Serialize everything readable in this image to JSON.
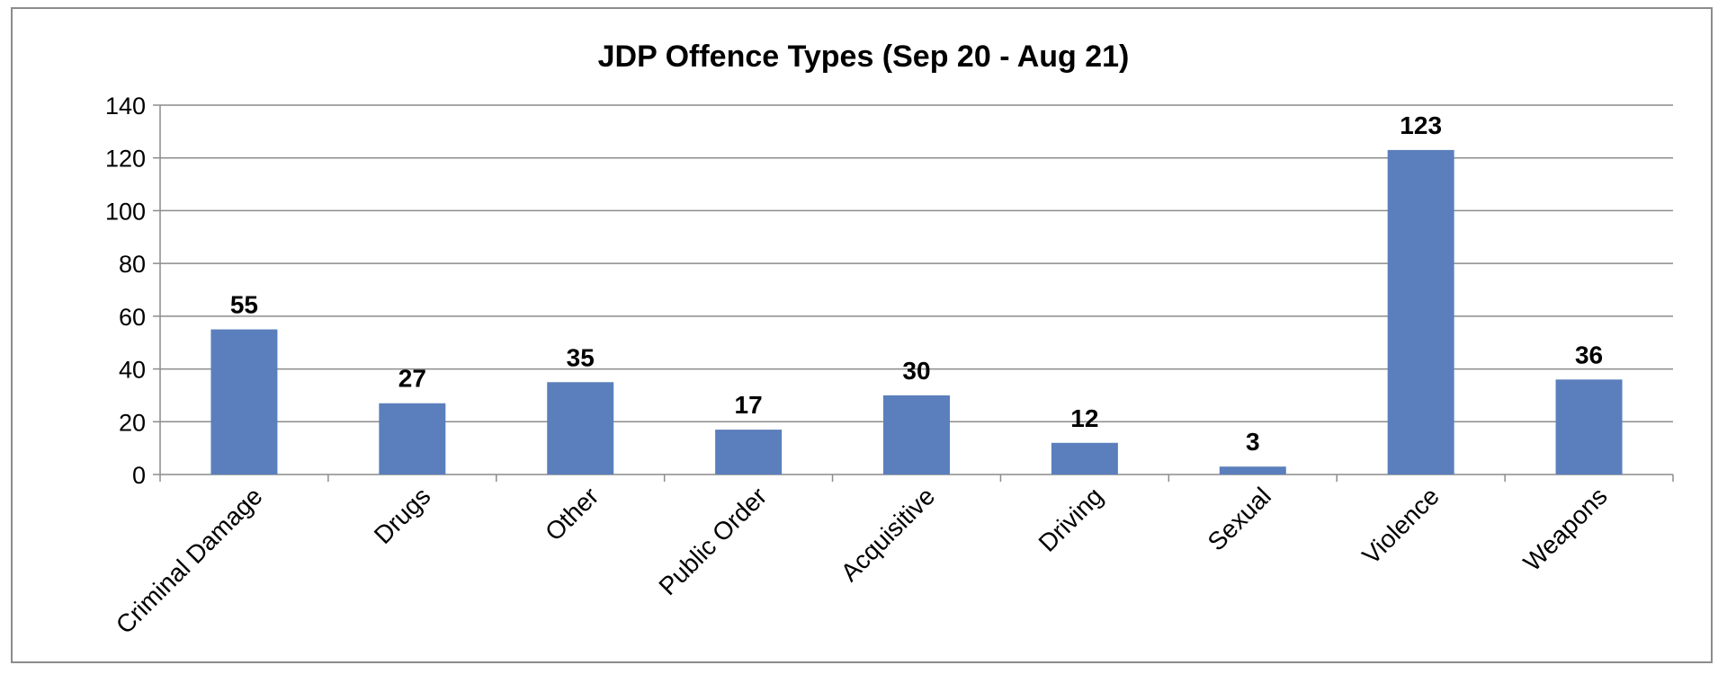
{
  "chart_data": {
    "type": "bar",
    "title": "JDP Offence Types (Sep 20 - Aug 21)",
    "xlabel": "",
    "ylabel": "",
    "categories": [
      "Criminal Damage",
      "Drugs",
      "Other",
      "Public Order",
      "Acquisitive",
      "Driving",
      "Sexual",
      "Violence",
      "Weapons"
    ],
    "values": [
      55,
      27,
      35,
      17,
      30,
      12,
      3,
      123,
      36
    ],
    "ylim": [
      0,
      140
    ],
    "yticks": [
      0,
      20,
      40,
      60,
      80,
      100,
      120,
      140
    ],
    "grid": true,
    "legend": "none",
    "data_labels": true,
    "bar_color": "#5b7fbc"
  }
}
